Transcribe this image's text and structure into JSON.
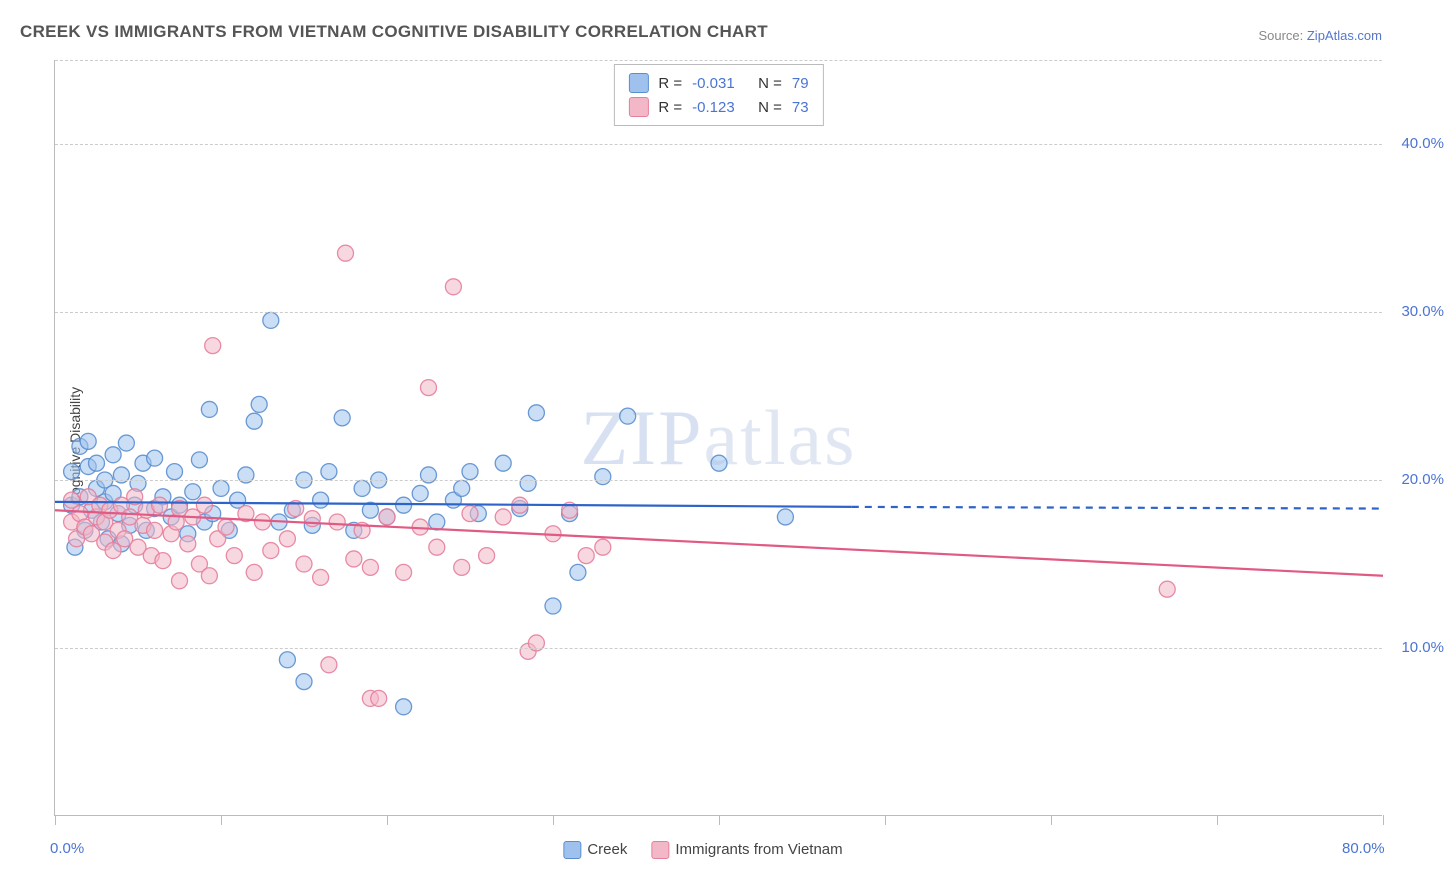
{
  "title": "CREEK VS IMMIGRANTS FROM VIETNAM COGNITIVE DISABILITY CORRELATION CHART",
  "source_prefix": "Source: ",
  "source_link": "ZipAtlas.com",
  "ylabel": "Cognitive Disability",
  "watermark_bold": "ZIP",
  "watermark_thin": "atlas",
  "chart": {
    "type": "scatter",
    "xlim": [
      0,
      80
    ],
    "ylim": [
      0,
      45
    ],
    "x_ticks": [
      0,
      10,
      20,
      30,
      40,
      50,
      60,
      70,
      80
    ],
    "x_tick_labels": {
      "0": "0.0%",
      "80": "80.0%"
    },
    "y_gridlines": [
      10,
      20,
      30,
      40
    ],
    "y_tick_labels": {
      "10": "10.0%",
      "20": "20.0%",
      "30": "30.0%",
      "40": "40.0%"
    },
    "background_color": "#ffffff",
    "grid_color": "#cccccc",
    "axis_color": "#bbbbbb",
    "tick_label_color": "#4a74d4",
    "marker_radius": 8,
    "marker_opacity": 0.55,
    "marker_stroke_opacity": 0.9,
    "trend_line_width": 2.2,
    "title_fontsize": 17,
    "label_fontsize": 14,
    "tick_fontsize": 15
  },
  "series": [
    {
      "name": "Creek",
      "label": "Creek",
      "fill_color": "#9ec2ed",
      "stroke_color": "#5b8ecf",
      "line_color": "#2e64c9",
      "R": "-0.031",
      "N": "79",
      "trend": {
        "x1": 0,
        "y1": 18.7,
        "x2": 48,
        "y2": 18.4,
        "dash_from_x": 48,
        "dash_to_x": 80,
        "dash_y": 18.3
      },
      "points": [
        [
          1,
          18.5
        ],
        [
          1,
          20.5
        ],
        [
          1.2,
          16
        ],
        [
          1.5,
          19
        ],
        [
          1.5,
          22
        ],
        [
          1.8,
          17
        ],
        [
          2,
          20.8
        ],
        [
          2,
          22.3
        ],
        [
          2.2,
          18.2
        ],
        [
          2.5,
          21
        ],
        [
          2.5,
          19.5
        ],
        [
          2.8,
          17.5
        ],
        [
          3,
          18.7
        ],
        [
          3,
          20
        ],
        [
          3.2,
          16.5
        ],
        [
          3.5,
          19.2
        ],
        [
          3.5,
          21.5
        ],
        [
          3.8,
          18
        ],
        [
          4,
          16.2
        ],
        [
          4,
          20.3
        ],
        [
          4.3,
          22.2
        ],
        [
          4.5,
          17.3
        ],
        [
          4.8,
          18.5
        ],
        [
          5,
          19.8
        ],
        [
          5.3,
          21
        ],
        [
          5.5,
          17
        ],
        [
          6,
          18.3
        ],
        [
          6,
          21.3
        ],
        [
          6.5,
          19
        ],
        [
          7,
          17.8
        ],
        [
          7.2,
          20.5
        ],
        [
          7.5,
          18.5
        ],
        [
          8,
          16.8
        ],
        [
          8.3,
          19.3
        ],
        [
          8.7,
          21.2
        ],
        [
          9,
          17.5
        ],
        [
          9.3,
          24.2
        ],
        [
          9.5,
          18
        ],
        [
          10,
          19.5
        ],
        [
          10.5,
          17
        ],
        [
          11,
          18.8
        ],
        [
          11.5,
          20.3
        ],
        [
          12,
          23.5
        ],
        [
          12.3,
          24.5
        ],
        [
          13,
          29.5
        ],
        [
          13.5,
          17.5
        ],
        [
          14,
          9.3
        ],
        [
          14.3,
          18.2
        ],
        [
          15,
          20
        ],
        [
          15,
          8
        ],
        [
          15.5,
          17.3
        ],
        [
          16,
          18.8
        ],
        [
          16.5,
          20.5
        ],
        [
          17.3,
          23.7
        ],
        [
          18,
          17
        ],
        [
          18.5,
          19.5
        ],
        [
          19,
          18.2
        ],
        [
          19.5,
          20
        ],
        [
          20,
          17.8
        ],
        [
          21,
          18.5
        ],
        [
          21,
          6.5
        ],
        [
          22,
          19.2
        ],
        [
          22.5,
          20.3
        ],
        [
          23,
          17.5
        ],
        [
          24,
          18.8
        ],
        [
          24.5,
          19.5
        ],
        [
          25,
          20.5
        ],
        [
          25.5,
          18
        ],
        [
          27,
          21
        ],
        [
          28,
          18.3
        ],
        [
          28.5,
          19.8
        ],
        [
          29,
          24
        ],
        [
          30,
          12.5
        ],
        [
          31,
          18
        ],
        [
          31.5,
          14.5
        ],
        [
          33,
          20.2
        ],
        [
          34.5,
          23.8
        ],
        [
          40,
          21
        ],
        [
          44,
          17.8
        ]
      ]
    },
    {
      "name": "Immigrants from Vietnam",
      "label": "Immigrants from Vietnam",
      "fill_color": "#f3b8c7",
      "stroke_color": "#e57f9c",
      "line_color": "#e15a84",
      "R": "-0.123",
      "N": "73",
      "trend": {
        "x1": 0,
        "y1": 18.2,
        "x2": 80,
        "y2": 14.3
      },
      "points": [
        [
          1,
          17.5
        ],
        [
          1,
          18.8
        ],
        [
          1.3,
          16.5
        ],
        [
          1.5,
          18
        ],
        [
          1.8,
          17.2
        ],
        [
          2,
          19
        ],
        [
          2.2,
          16.8
        ],
        [
          2.5,
          17.8
        ],
        [
          2.7,
          18.5
        ],
        [
          3,
          16.3
        ],
        [
          3,
          17.5
        ],
        [
          3.3,
          18.2
        ],
        [
          3.5,
          15.8
        ],
        [
          3.8,
          17
        ],
        [
          4,
          18.5
        ],
        [
          4.2,
          16.5
        ],
        [
          4.5,
          17.8
        ],
        [
          4.8,
          19
        ],
        [
          5,
          16
        ],
        [
          5.3,
          17.3
        ],
        [
          5.5,
          18.2
        ],
        [
          5.8,
          15.5
        ],
        [
          6,
          17
        ],
        [
          6.3,
          18.5
        ],
        [
          6.5,
          15.2
        ],
        [
          7,
          16.8
        ],
        [
          7.3,
          17.5
        ],
        [
          7.5,
          14
        ],
        [
          7.5,
          18.3
        ],
        [
          8,
          16.2
        ],
        [
          8.3,
          17.8
        ],
        [
          8.7,
          15
        ],
        [
          9,
          18.5
        ],
        [
          9.3,
          14.3
        ],
        [
          9.5,
          28
        ],
        [
          9.8,
          16.5
        ],
        [
          10.3,
          17.2
        ],
        [
          10.8,
          15.5
        ],
        [
          11.5,
          18
        ],
        [
          12,
          14.5
        ],
        [
          12.5,
          17.5
        ],
        [
          13,
          15.8
        ],
        [
          14,
          16.5
        ],
        [
          14.5,
          18.3
        ],
        [
          15,
          15
        ],
        [
          15.5,
          17.7
        ],
        [
          16,
          14.2
        ],
        [
          16.5,
          9
        ],
        [
          17,
          17.5
        ],
        [
          17.5,
          33.5
        ],
        [
          18,
          15.3
        ],
        [
          18.5,
          17
        ],
        [
          19,
          14.8
        ],
        [
          19,
          7
        ],
        [
          19.5,
          7
        ],
        [
          20,
          17.8
        ],
        [
          21,
          14.5
        ],
        [
          22,
          17.2
        ],
        [
          22.5,
          25.5
        ],
        [
          23,
          16
        ],
        [
          24,
          31.5
        ],
        [
          24.5,
          14.8
        ],
        [
          25,
          18
        ],
        [
          26,
          15.5
        ],
        [
          27,
          17.8
        ],
        [
          28,
          18.5
        ],
        [
          28.5,
          9.8
        ],
        [
          29,
          10.3
        ],
        [
          30,
          16.8
        ],
        [
          31,
          18.2
        ],
        [
          32,
          15.5
        ],
        [
          33,
          16
        ],
        [
          67,
          13.5
        ]
      ]
    }
  ],
  "legend_top_labels": {
    "R": "R =",
    "N": "N ="
  },
  "legend_bottom": [
    {
      "series_idx": 0
    },
    {
      "series_idx": 1
    }
  ]
}
